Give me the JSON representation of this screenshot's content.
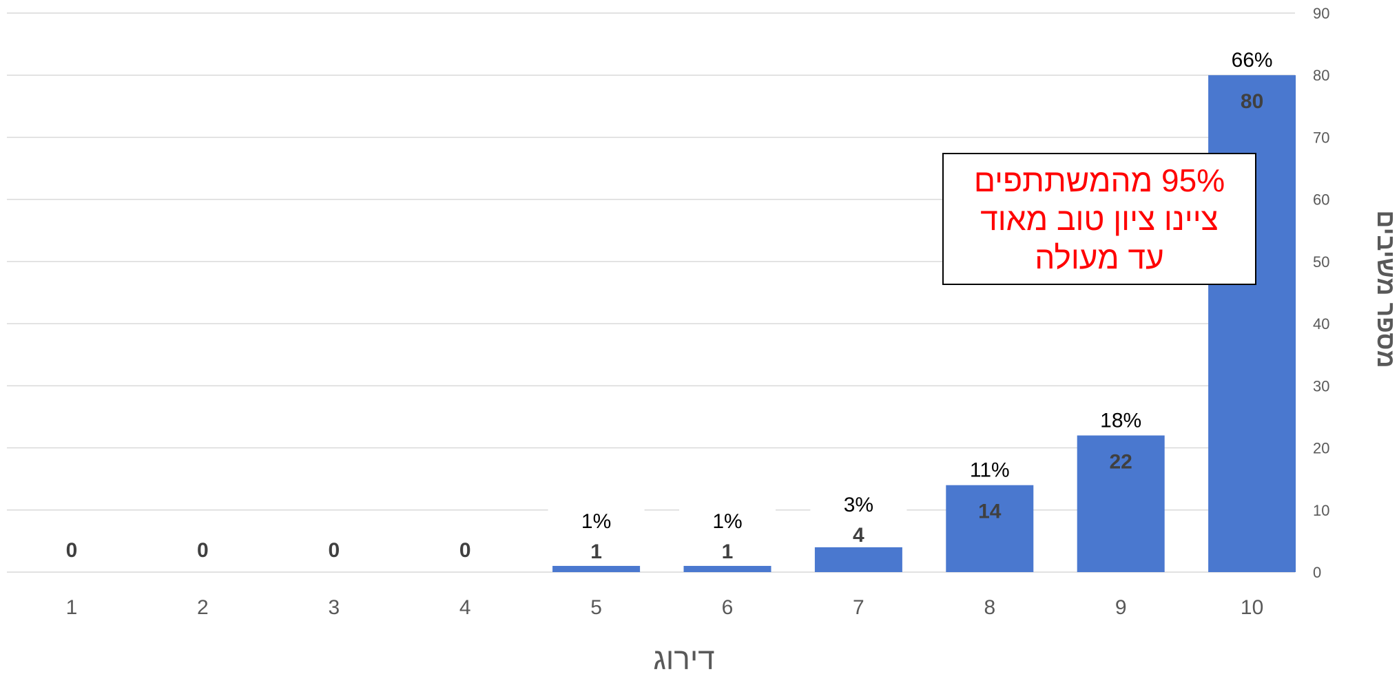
{
  "chart_data": {
    "type": "bar",
    "categories": [
      "1",
      "2",
      "3",
      "4",
      "5",
      "6",
      "7",
      "8",
      "9",
      "10"
    ],
    "values": [
      0,
      0,
      0,
      0,
      1,
      1,
      4,
      14,
      22,
      80
    ],
    "percent_labels": [
      "",
      "",
      "",
      "",
      "1%",
      "1%",
      "3%",
      "11%",
      "18%",
      "66%"
    ],
    "xlabel": "דירוג",
    "ylabel": "מספר משיבים",
    "ylim": [
      0,
      90
    ],
    "yticks": [
      0,
      10,
      20,
      30,
      40,
      50,
      60,
      70,
      80,
      90
    ],
    "y_axis_side": "right",
    "grid": true,
    "bar_color": "#4a78cf",
    "annotation": {
      "lines": [
        "95% מהמשתתפים",
        "ציינו ציון טוב מאוד",
        "עד מעולה"
      ],
      "color": "#ff0000"
    }
  }
}
